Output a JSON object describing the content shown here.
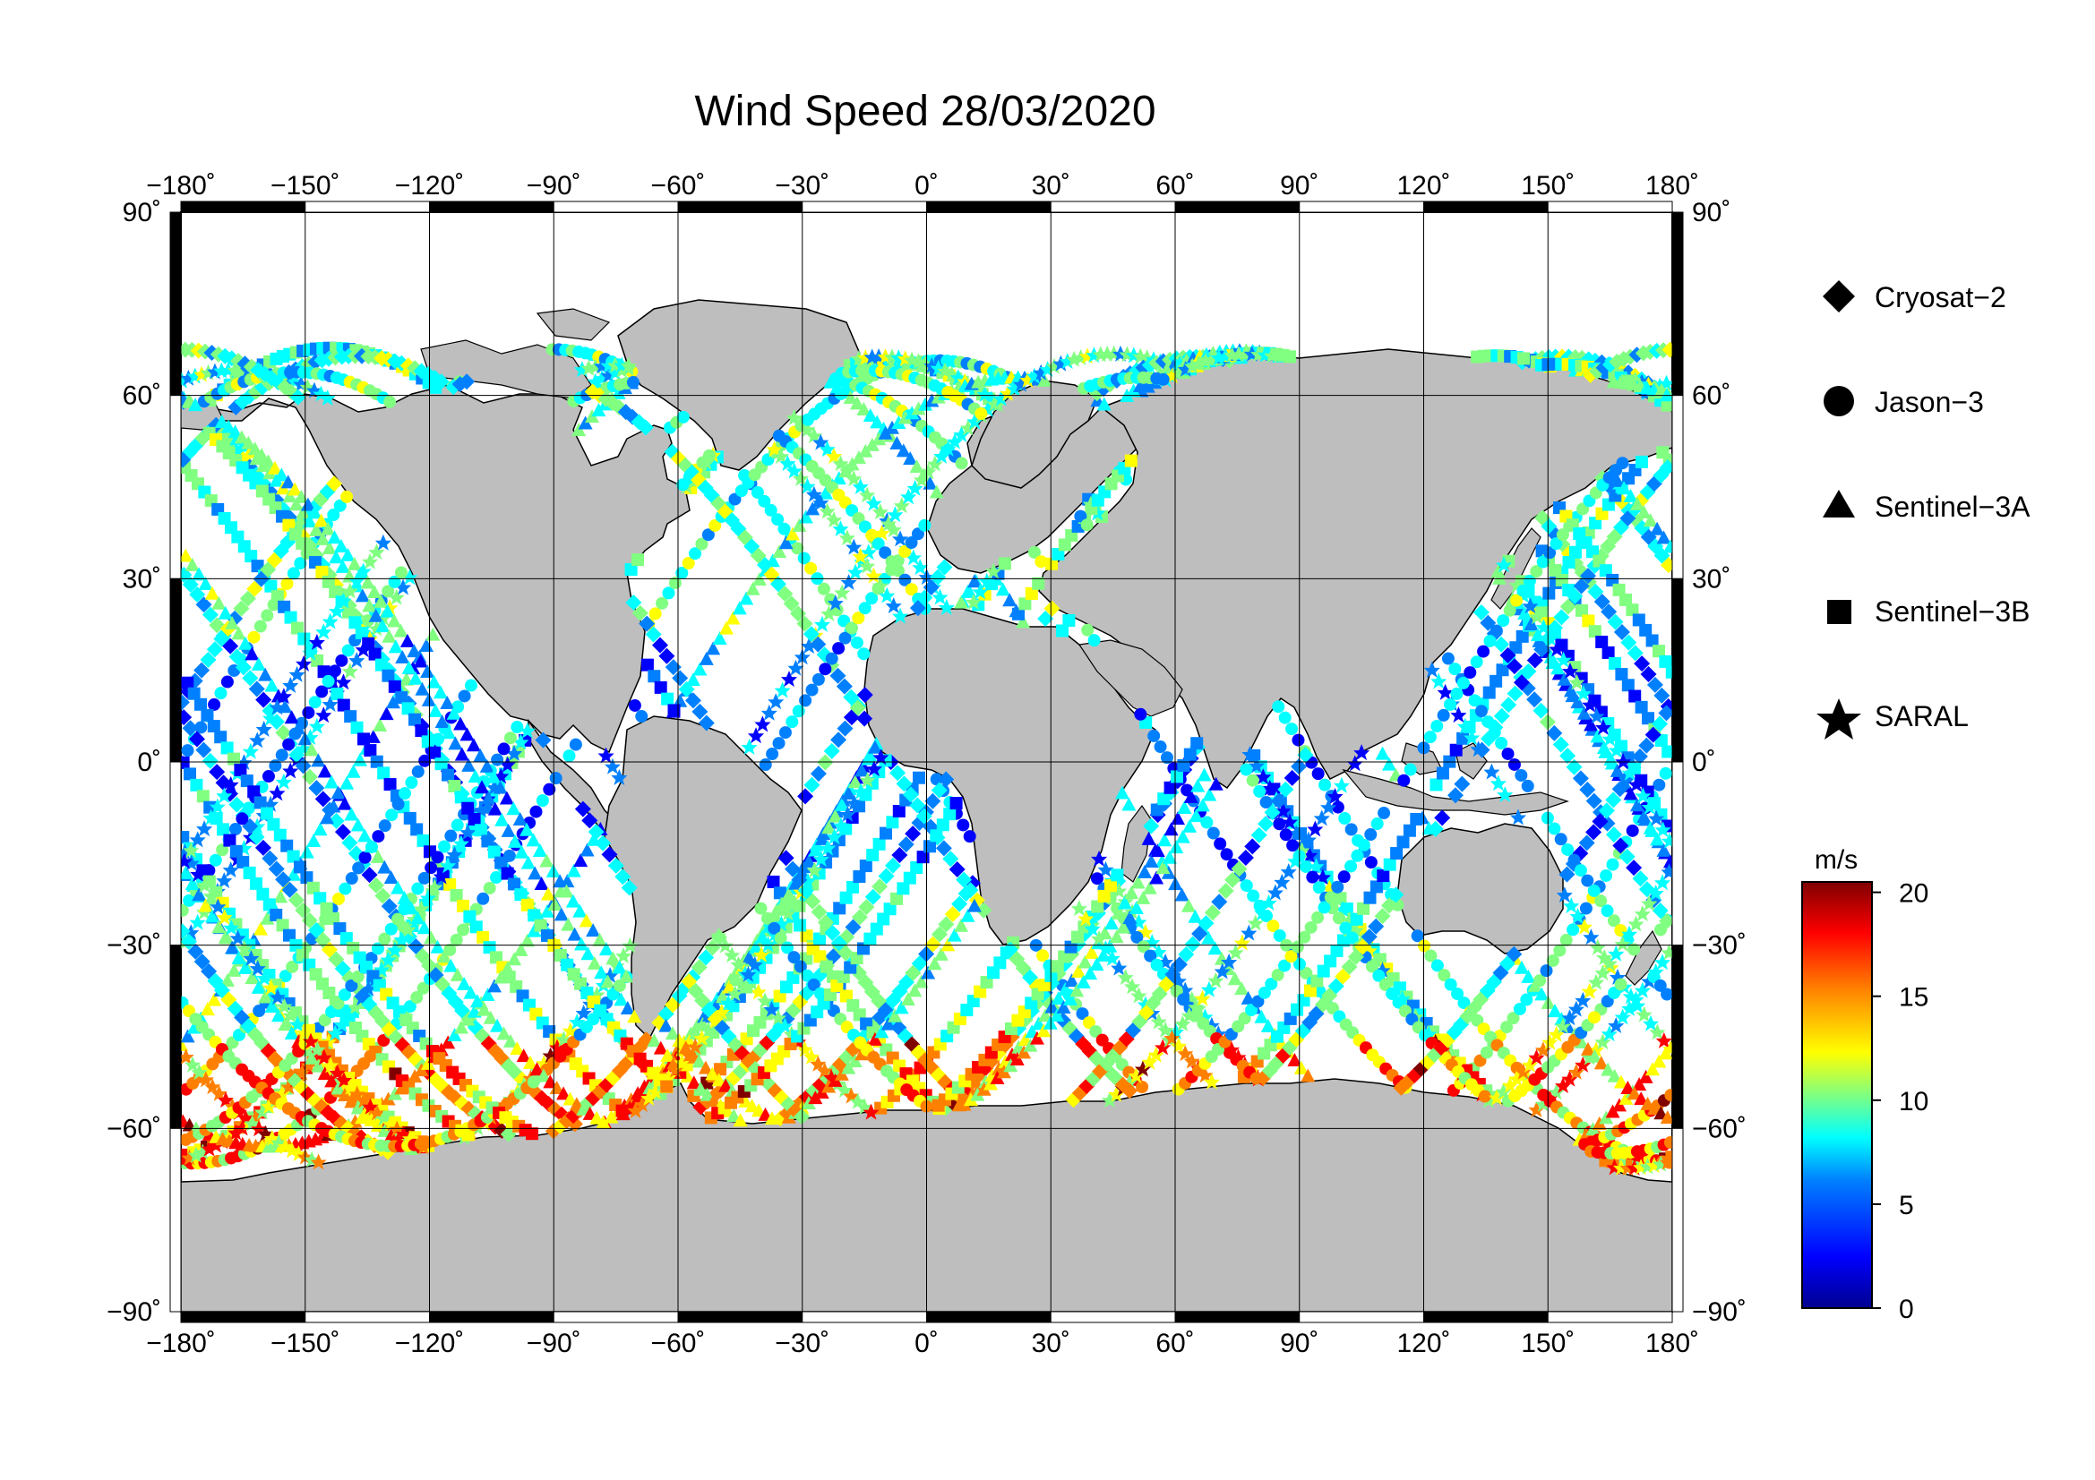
{
  "title": "Wind Speed 28/03/2020",
  "axes": {
    "lon_ticks": [
      "−180˚",
      "−150˚",
      "−120˚",
      "−90˚",
      "−60˚",
      "−30˚",
      "0˚",
      "30˚",
      "60˚",
      "90˚",
      "120˚",
      "150˚",
      "180˚"
    ],
    "lat_ticks": [
      "90˚",
      "60˚",
      "30˚",
      "0˚",
      "−30˚",
      "−60˚",
      "−90˚"
    ],
    "lon_range": [
      -180,
      180
    ],
    "lat_range": [
      -90,
      90
    ]
  },
  "legend": {
    "items": [
      {
        "label": "Cryosat−2",
        "icon": "diamond-icon"
      },
      {
        "label": "Jason−3",
        "icon": "circle-icon"
      },
      {
        "label": "Sentinel−3A",
        "icon": "triangle-icon"
      },
      {
        "label": "Sentinel−3B",
        "icon": "square-icon"
      },
      {
        "label": "SARAL",
        "icon": "star-icon"
      }
    ]
  },
  "colorbar": {
    "unit": "m/s",
    "ticks": [
      "20",
      "15",
      "10",
      "5",
      "0"
    ],
    "range": [
      0,
      20.5
    ],
    "colors": [
      "#00008f",
      "#0000ff",
      "#0080ff",
      "#00ffff",
      "#80ff80",
      "#ffff00",
      "#ff8000",
      "#ff0000",
      "#800000"
    ]
  },
  "colors": {
    "land": "#bebebe",
    "ocean": "#ffffff",
    "coast": "#000000"
  }
}
